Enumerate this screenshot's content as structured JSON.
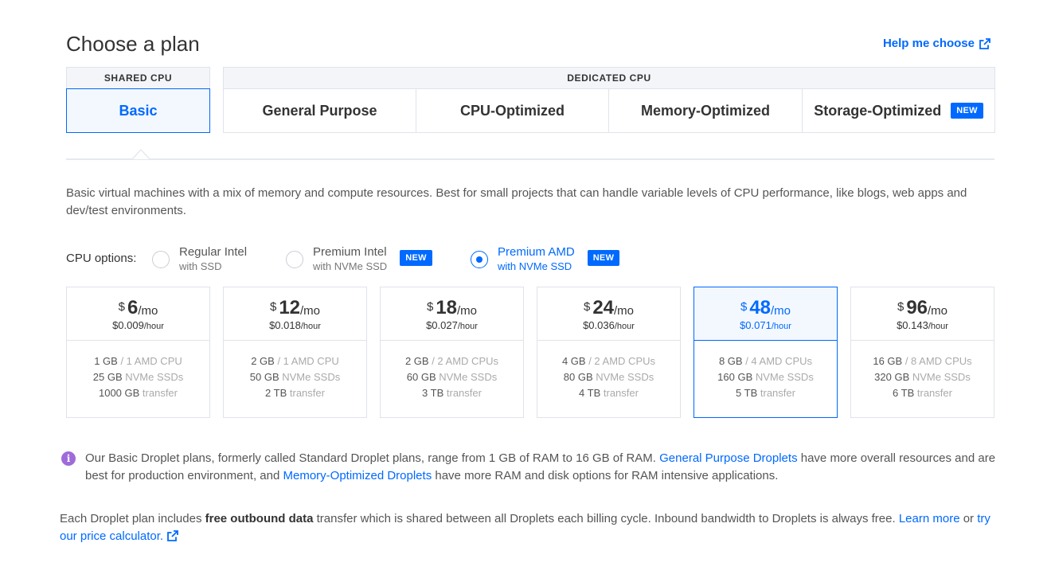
{
  "page": {
    "title": "Choose a plan",
    "help_link": "Help me choose"
  },
  "groups": {
    "shared": "SHARED CPU",
    "dedicated": "DEDICATED CPU"
  },
  "tabs": [
    {
      "label": "Basic",
      "active": true
    },
    {
      "label": "General Purpose",
      "active": false
    },
    {
      "label": "CPU-Optimized",
      "active": false
    },
    {
      "label": "Memory-Optimized",
      "active": false
    },
    {
      "label": "Storage-Optimized",
      "badge": "NEW",
      "active": false
    }
  ],
  "description": "Basic virtual machines with a mix of memory and compute resources. Best for small projects that can handle variable levels of CPU performance, like blogs, web apps and dev/test environments.",
  "cpu_options": {
    "label": "CPU options:",
    "options": [
      {
        "name": "Regular Intel",
        "sub": "with SSD",
        "selected": false
      },
      {
        "name": "Premium Intel",
        "sub": "with NVMe SSD",
        "badge": "NEW",
        "selected": false
      },
      {
        "name": "Premium AMD",
        "sub": "with NVMe SSD",
        "badge": "NEW",
        "selected": true
      }
    ]
  },
  "plans": [
    {
      "currency": "$",
      "amount": "6",
      "per": "/mo",
      "hourly": "$0.009",
      "hour_unit": "/hour",
      "mem": "1 GB",
      "cpu": " / 1 AMD CPU",
      "disk": "25 GB",
      "disk_type": " NVMe SSDs",
      "transfer": "1000 GB",
      "transfer_label": " transfer",
      "selected": false
    },
    {
      "currency": "$",
      "amount": "12",
      "per": "/mo",
      "hourly": "$0.018",
      "hour_unit": "/hour",
      "mem": "2 GB",
      "cpu": " / 1 AMD CPU",
      "disk": "50 GB",
      "disk_type": " NVMe SSDs",
      "transfer": "2 TB",
      "transfer_label": " transfer",
      "selected": false
    },
    {
      "currency": "$",
      "amount": "18",
      "per": "/mo",
      "hourly": "$0.027",
      "hour_unit": "/hour",
      "mem": "2 GB",
      "cpu": " / 2 AMD CPUs",
      "disk": "60 GB",
      "disk_type": " NVMe SSDs",
      "transfer": "3 TB",
      "transfer_label": " transfer",
      "selected": false
    },
    {
      "currency": "$",
      "amount": "24",
      "per": "/mo",
      "hourly": "$0.036",
      "hour_unit": "/hour",
      "mem": "4 GB",
      "cpu": " / 2 AMD CPUs",
      "disk": "80 GB",
      "disk_type": " NVMe SSDs",
      "transfer": "4 TB",
      "transfer_label": " transfer",
      "selected": false
    },
    {
      "currency": "$",
      "amount": "48",
      "per": "/mo",
      "hourly": "$0.071",
      "hour_unit": "/hour",
      "mem": "8 GB",
      "cpu": " / 4 AMD CPUs",
      "disk": "160 GB",
      "disk_type": " NVMe SSDs",
      "transfer": "5 TB",
      "transfer_label": " transfer",
      "selected": true
    },
    {
      "currency": "$",
      "amount": "96",
      "per": "/mo",
      "hourly": "$0.143",
      "hour_unit": "/hour",
      "mem": "16 GB",
      "cpu": " / 8 AMD CPUs",
      "disk": "320 GB",
      "disk_type": " NVMe SSDs",
      "transfer": "6 TB",
      "transfer_label": " transfer",
      "selected": false
    }
  ],
  "info": {
    "text1": "Our Basic Droplet plans, formerly called Standard Droplet plans, range from 1 GB of RAM to 16 GB of RAM. ",
    "link1": "General Purpose Droplets",
    "text2": " have more overall resources and are best for production environment, and ",
    "link2": "Memory-Optimized Droplets",
    "text3": " have more RAM and disk options for RAM intensive applications."
  },
  "footer": {
    "text1": "Each Droplet plan includes ",
    "bold": "free outbound data",
    "text2": " transfer which is shared between all Droplets each billing cycle. Inbound bandwidth to Droplets is always free. ",
    "link1": "Learn more",
    "text3": " or ",
    "link2": "try our price calculator."
  },
  "colors": {
    "accent": "#0069ff",
    "info_icon": "#9f6bd9",
    "border": "#dfe3ea",
    "header_bg": "#f3f5f9"
  }
}
